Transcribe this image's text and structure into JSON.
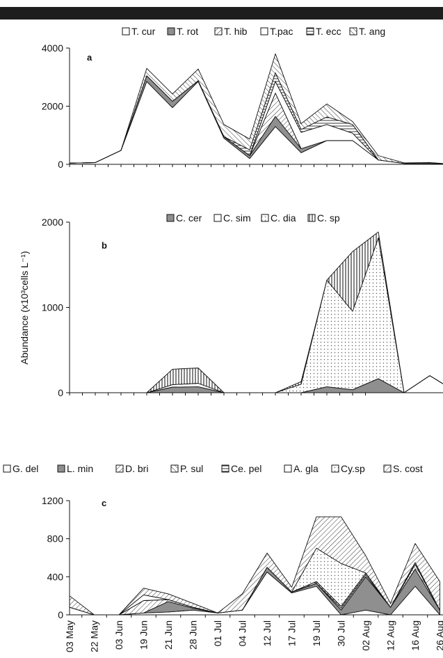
{
  "colors": {
    "topbar": "#1e1e1e",
    "axis": "#111111",
    "fill_gray": "#8f8f8f",
    "fill_white": "#ffffff"
  },
  "shared": {
    "ylabel": "Abundance (x10³cells L⁻¹)"
  },
  "chart_data": [
    {
      "panel": "a",
      "type": "area",
      "stacked": true,
      "ylim": [
        0,
        4000
      ],
      "yticks": [
        0,
        2000,
        4000
      ],
      "x_count": 24,
      "series": [
        {
          "name": "T. cur",
          "fill": "white",
          "values": [
            40,
            60,
            480,
            2850,
            1950,
            2850,
            900,
            200,
            1300,
            400,
            820,
            820,
            150,
            30,
            30,
            0,
            30
          ]
        },
        {
          "name": "T. rot",
          "fill": "gray",
          "values": [
            0,
            0,
            0,
            200,
            220,
            30,
            50,
            100,
            350,
            140,
            0,
            0,
            0,
            0,
            0,
            0,
            0
          ]
        },
        {
          "name": "T. hib",
          "fill": "hatch",
          "values": [
            0,
            0,
            0,
            0,
            0,
            0,
            0,
            0,
            800,
            0,
            0,
            0,
            0,
            0,
            0,
            0,
            0
          ]
        },
        {
          "name": "T.pac",
          "fill": "white",
          "values": [
            0,
            0,
            0,
            0,
            0,
            0,
            0,
            0,
            400,
            560,
            550,
            250,
            0,
            0,
            0,
            0,
            0
          ]
        },
        {
          "name": "T. ecc",
          "fill": "hstripe",
          "values": [
            0,
            0,
            0,
            0,
            0,
            0,
            0,
            200,
            300,
            100,
            260,
            300,
            0,
            0,
            0,
            0,
            0
          ]
        },
        {
          "name": "T. ang",
          "fill": "bhatch",
          "values": [
            0,
            0,
            0,
            250,
            250,
            400,
            420,
            370,
            650,
            200,
            450,
            100,
            150,
            20,
            30,
            0,
            30
          ]
        }
      ]
    },
    {
      "panel": "b",
      "type": "area",
      "stacked": true,
      "ylim": [
        0,
        2000
      ],
      "yticks": [
        0,
        1000,
        2000
      ],
      "x_count": 24,
      "series": [
        {
          "name": "C. cer",
          "fill": "gray",
          "values": [
            0,
            0,
            0,
            0,
            65,
            70,
            0,
            0,
            0,
            0,
            70,
            35,
            165,
            0,
            0,
            0,
            0
          ]
        },
        {
          "name": "C. sim",
          "fill": "white",
          "values": [
            0,
            0,
            0,
            0,
            30,
            40,
            0,
            0,
            0,
            0,
            0,
            0,
            0,
            0,
            200,
            15,
            0
          ]
        },
        {
          "name": "C. dia",
          "fill": "dots",
          "values": [
            0,
            0,
            0,
            0,
            0,
            0,
            0,
            0,
            0,
            100,
            1250,
            920,
            1650,
            0,
            0,
            0,
            0
          ]
        },
        {
          "name": "C. sp",
          "fill": "vstripe",
          "values": [
            0,
            0,
            0,
            0,
            180,
            180,
            0,
            0,
            0,
            30,
            0,
            700,
            70,
            0,
            0,
            0,
            0
          ]
        }
      ]
    },
    {
      "panel": "c",
      "type": "area",
      "stacked": true,
      "ylim": [
        0,
        1200
      ],
      "yticks": [
        0,
        400,
        800,
        1200
      ],
      "x_count": 17,
      "categories": [
        "03 May",
        "22 May",
        "03 Jun",
        "19 Jun",
        "21 Jun",
        "28 Jun",
        "01 Jul",
        "04 Jul",
        "12 Jul",
        "17 Jul",
        "19 Jul",
        "30 Jul",
        "02 Aug",
        "12 Aug",
        "16 Aug",
        "26 Aug"
      ],
      "series": [
        {
          "name": "G. del",
          "fill": "white",
          "values": [
            80,
            0,
            0,
            20,
            30,
            50,
            20,
            50,
            450,
            230,
            300,
            0,
            50,
            0,
            300,
            0
          ]
        },
        {
          "name": "L. min",
          "fill": "gray",
          "values": [
            0,
            0,
            0,
            0,
            110,
            20,
            0,
            0,
            50,
            10,
            30,
            50,
            350,
            80,
            180,
            50
          ]
        },
        {
          "name": "D. bri",
          "fill": "hatch",
          "values": [
            0,
            0,
            0,
            130,
            20,
            10,
            0,
            0,
            0,
            0,
            0,
            0,
            0,
            0,
            0,
            0
          ]
        },
        {
          "name": "P. sul",
          "fill": "bhatch",
          "values": [
            0,
            0,
            0,
            0,
            0,
            0,
            0,
            0,
            0,
            0,
            0,
            20,
            20,
            0,
            50,
            0
          ]
        },
        {
          "name": "Ce. pel",
          "fill": "hstripe",
          "values": [
            0,
            0,
            0,
            0,
            0,
            0,
            0,
            0,
            0,
            0,
            20,
            20,
            20,
            0,
            20,
            0
          ]
        },
        {
          "name": "A. gla",
          "fill": "white",
          "values": [
            0,
            0,
            0,
            60,
            0,
            0,
            0,
            0,
            0,
            0,
            0,
            0,
            0,
            0,
            0,
            0
          ]
        },
        {
          "name": "Cy.sp",
          "fill": "dots",
          "values": [
            0,
            0,
            0,
            0,
            0,
            0,
            0,
            0,
            0,
            0,
            350,
            450,
            0,
            0,
            0,
            0
          ]
        },
        {
          "name": "S. cost",
          "fill": "hatch",
          "values": [
            120,
            0,
            0,
            70,
            60,
            40,
            0,
            170,
            150,
            50,
            330,
            490,
            180,
            40,
            200,
            300
          ]
        }
      ]
    }
  ]
}
